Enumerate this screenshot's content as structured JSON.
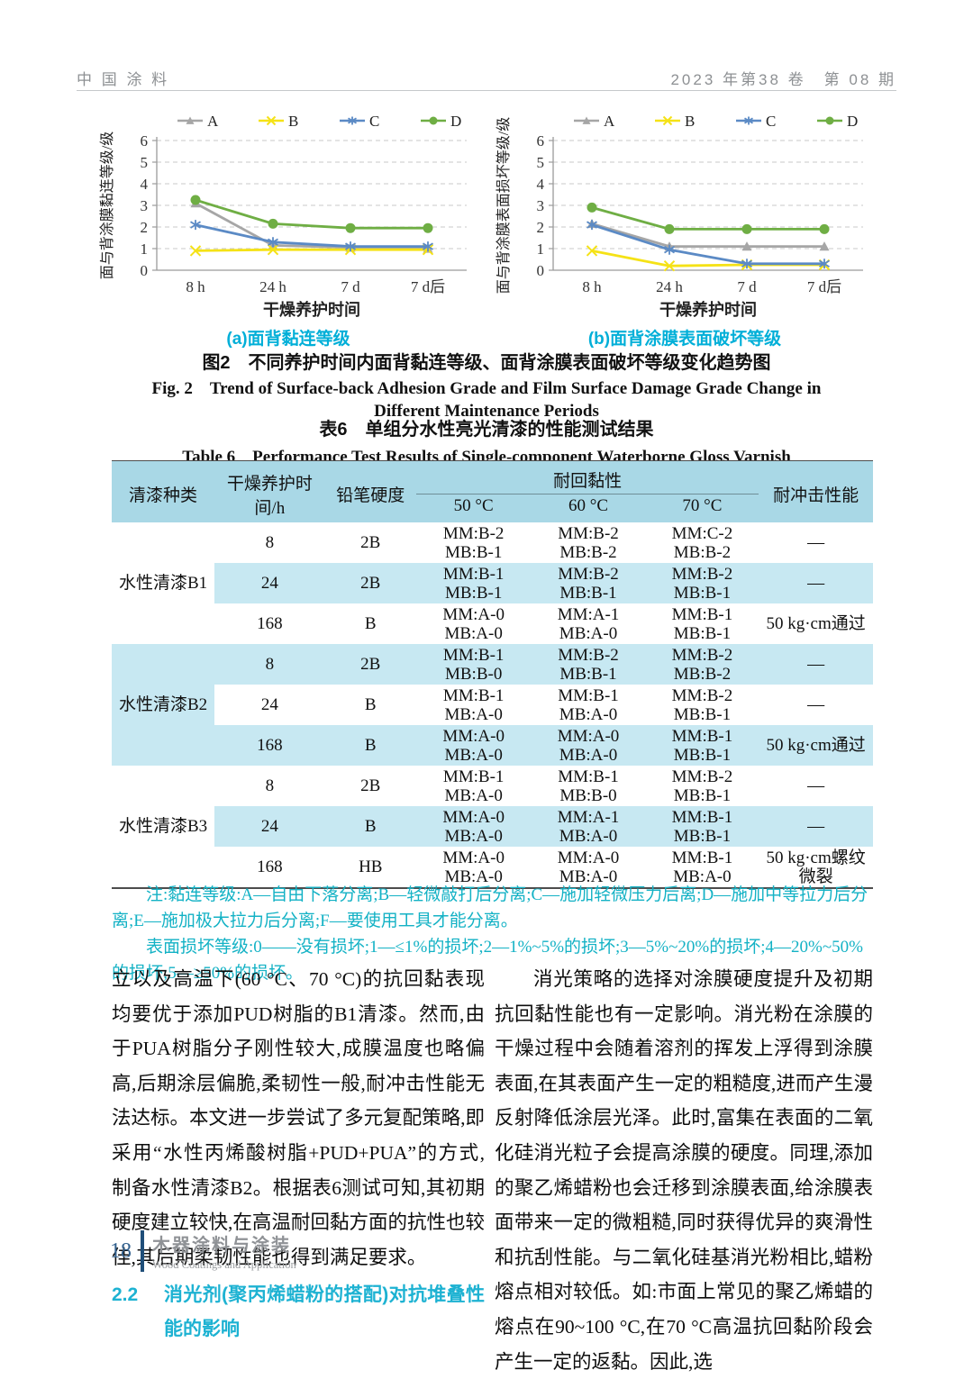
{
  "header": {
    "journal": "中 国 涂 料",
    "issue": "2023 年第38 卷　第 08 期"
  },
  "chart_data": [
    {
      "type": "line",
      "title": "(a)面背黏连等级",
      "ylabel": "面与背涂膜黏连等级/级",
      "xlabel": "干燥养护时间",
      "categories": [
        "8 h",
        "24 h",
        "7 d",
        "7 d后"
      ],
      "ylim": [
        0,
        6
      ],
      "yticks": [
        0,
        1,
        2,
        3,
        4,
        5,
        6
      ],
      "grid": "dashed-horizontal",
      "legend_position": "top",
      "series": [
        {
          "name": "A",
          "color": "#a6a6a6",
          "marker": "triangle",
          "values": [
            3.1,
            1.15,
            1.05,
            1.0
          ]
        },
        {
          "name": "B",
          "color": "#f5e216",
          "marker": "x",
          "values": [
            0.9,
            0.95,
            0.95,
            0.95
          ]
        },
        {
          "name": "C",
          "color": "#5b8ac5",
          "marker": "asterisk",
          "values": [
            2.1,
            1.3,
            1.1,
            1.1
          ]
        },
        {
          "name": "D",
          "color": "#6fae44",
          "marker": "circle",
          "values": [
            3.25,
            2.15,
            1.95,
            1.95
          ]
        }
      ]
    },
    {
      "type": "line",
      "title": "(b)面背涂膜表面破坏等级",
      "ylabel": "面与背涂膜表面损坏等级/级",
      "xlabel": "干燥养护时间",
      "categories": [
        "8 h",
        "24 h",
        "7 d",
        "7 d后"
      ],
      "ylim": [
        0,
        6
      ],
      "yticks": [
        0,
        1,
        2,
        3,
        4,
        5,
        6
      ],
      "grid": "dashed-horizontal",
      "legend_position": "top",
      "series": [
        {
          "name": "A",
          "color": "#a6a6a6",
          "marker": "triangle",
          "values": [
            2.15,
            1.1,
            1.1,
            1.1
          ]
        },
        {
          "name": "B",
          "color": "#f5e216",
          "marker": "x",
          "values": [
            0.9,
            0.2,
            0.25,
            0.25
          ]
        },
        {
          "name": "C",
          "color": "#5b8ac5",
          "marker": "asterisk",
          "values": [
            2.1,
            0.95,
            0.3,
            0.3
          ]
        },
        {
          "name": "D",
          "color": "#6fae44",
          "marker": "circle",
          "values": [
            2.9,
            1.9,
            1.9,
            1.9
          ]
        }
      ]
    }
  ],
  "figure": {
    "caption_zh": "图2　不同养护时间内面背黏连等级、面背涂膜表面破坏等级变化趋势图",
    "caption_en": "Fig. 2　Trend of Surface-back Adhesion Grade and Film Surface Damage Grade Change in Different Maintenance Periods"
  },
  "table": {
    "title_zh": "表6　单组分水性亮光清漆的性能测试结果",
    "title_en": "Table 6　Performance Test Results of Single-component Waterborne Gloss Varnish",
    "headers": {
      "type": "清漆种类",
      "time": "干燥养护时间/h",
      "hardness": "铅笔硬度",
      "antitack": "耐回黏性",
      "temps": [
        "50 °C",
        "60 °C",
        "70 °C"
      ],
      "impact": "耐冲击性能"
    },
    "groups": [
      {
        "name": "水性清漆B1",
        "label_shaded": false,
        "rows": [
          {
            "shaded": false,
            "time": "8",
            "hardness": "2B",
            "t50": [
              "MM:B-2",
              "MB:B-1"
            ],
            "t60": [
              "MM:B-2",
              "MB:B-2"
            ],
            "t70": [
              "MM:C-2",
              "MB:B-2"
            ],
            "impact": "—"
          },
          {
            "shaded": true,
            "time": "24",
            "hardness": "2B",
            "t50": [
              "MM:B-1",
              "MB:B-1"
            ],
            "t60": [
              "MM:B-2",
              "MB:B-1"
            ],
            "t70": [
              "MM:B-2",
              "MB:B-1"
            ],
            "impact": "—"
          },
          {
            "shaded": false,
            "time": "168",
            "hardness": "B",
            "t50": [
              "MM:A-0",
              "MB:A-0"
            ],
            "t60": [
              "MM:A-1",
              "MB:A-0"
            ],
            "t70": [
              "MM:B-1",
              "MB:B-1"
            ],
            "impact": "50 kg·cm通过"
          }
        ]
      },
      {
        "name": "水性清漆B2",
        "label_shaded": true,
        "rows": [
          {
            "shaded": true,
            "time": "8",
            "hardness": "2B",
            "t50": [
              "MM:B-1",
              "MB:B-0"
            ],
            "t60": [
              "MM:B-2",
              "MB:B-1"
            ],
            "t70": [
              "MM:B-2",
              "MB:B-2"
            ],
            "impact": "—"
          },
          {
            "shaded": false,
            "time": "24",
            "hardness": "B",
            "t50": [
              "MM:B-1",
              "MB:A-0"
            ],
            "t60": [
              "MM:B-1",
              "MB:A-0"
            ],
            "t70": [
              "MM:B-2",
              "MB:B-1"
            ],
            "impact": "—"
          },
          {
            "shaded": true,
            "time": "168",
            "hardness": "B",
            "t50": [
              "MM:A-0",
              "MB:A-0"
            ],
            "t60": [
              "MM:A-0",
              "MB:A-0"
            ],
            "t70": [
              "MM:B-1",
              "MB:B-1"
            ],
            "impact": "50 kg·cm通过"
          }
        ]
      },
      {
        "name": "水性清漆B3",
        "label_shaded": false,
        "rows": [
          {
            "shaded": false,
            "time": "8",
            "hardness": "2B",
            "t50": [
              "MM:B-1",
              "MB:A-0"
            ],
            "t60": [
              "MM:B-1",
              "MB:B-0"
            ],
            "t70": [
              "MM:B-2",
              "MB:B-1"
            ],
            "impact": "—"
          },
          {
            "shaded": true,
            "time": "24",
            "hardness": "B",
            "t50": [
              "MM:A-0",
              "MB:A-0"
            ],
            "t60": [
              "MM:A-1",
              "MB:A-0"
            ],
            "t70": [
              "MM:B-1",
              "MB:B-1"
            ],
            "impact": "—"
          },
          {
            "shaded": false,
            "time": "168",
            "hardness": "HB",
            "t50": [
              "MM:A-0",
              "MB:A-0"
            ],
            "t60": [
              "MM:A-0",
              "MB:A-0"
            ],
            "t70": [
              "MM:B-1",
              "MB:A-0"
            ],
            "impact": "50 kg·cm螺纹微裂"
          }
        ]
      }
    ],
    "note1": "注:黏连等级:A—自由下落分离;B—轻微敲打后分离;C—施加轻微压力后离;D—施加中等拉力后分离;E—施加极大拉力后分离;F—要使用工具才能分离。",
    "note2": "表面损坏等级:0——没有损坏;1—≤1%的损坏;2—1%~5%的损坏;3—5%~20%的损坏;4—20%~50%的损坏;5—≥50%的损坏。"
  },
  "body": {
    "left_paragraph": "立以及高温下(60 °C、70 °C)的抗回黏表现均要优于添加PUD树脂的B1清漆。然而,由于PUA树脂分子刚性较大,成膜温度也略偏高,后期涂层偏脆,柔韧性一般,耐冲击性能无法达标。本文进一步尝试了多元复配策略,即采用“水性丙烯酸树脂+PUD+PUA”的方式,制备水性清漆B2。根据表6测试可知,其初期硬度建立较快,在高温耐回黏方面的抗性也较佳,其后期柔韧性能也得到满足要求。",
    "section": {
      "number": "2.2",
      "title": "消光剂(聚丙烯蜡粉的搭配)对抗堆叠性能的影响"
    },
    "right_paragraph": "消光策略的选择对涂膜硬度提升及初期抗回黏性能也有一定影响。消光粉在涂膜的干燥过程中会随着溶剂的挥发上浮得到涂膜表面,在其表面产生一定的粗糙度,进而产生漫反射降低涂层光泽。此时,富集在表面的二氧化硅消光粒子会提高涂膜的硬度。同理,添加的聚乙烯蜡粉也会迁移到涂膜表面,给涂膜表面带来一定的微粗糙,同时获得优异的爽滑性和抗刮性能。与二氧化硅基消光粉相比,蜡粉熔点相对较低。如:市面上常见的聚乙烯蜡的熔点在90~100 °C,在70 °C高温抗回黏阶段会产生一定的返黏。因此,选"
  },
  "footer": {
    "page": "18",
    "title_zh": "木器涂料与涂装",
    "title_en": "Wood Coatings and Application"
  }
}
